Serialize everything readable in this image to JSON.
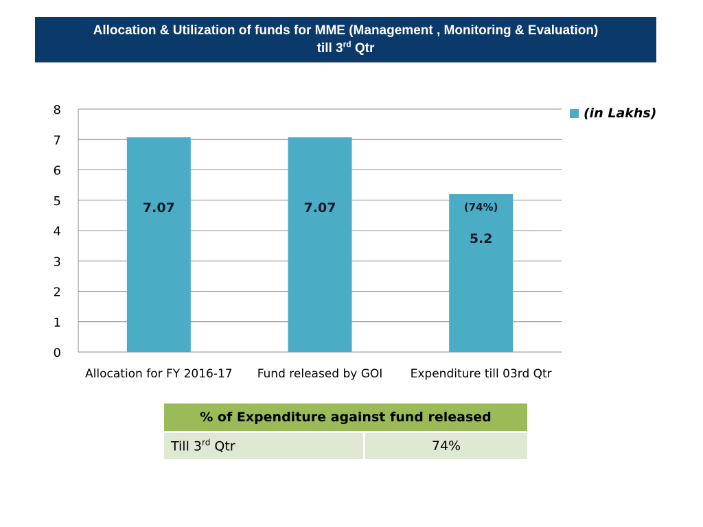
{
  "header": {
    "title_line1": "Allocation & Utilization of funds for MME (Management , Monitoring & Evaluation)",
    "title_line2_prefix": "till 3",
    "title_line2_sup": "rd",
    "title_line2_suffix": " Qtr"
  },
  "chart_data": {
    "type": "bar",
    "categories": [
      "Allocation for FY 2016-17",
      "Fund released by GOI",
      "Expenditure till 03rd  Qtr"
    ],
    "series": [
      {
        "name": "(in Lakhs)",
        "values": [
          7.07,
          7.07,
          5.2
        ],
        "color": "#4bacc6"
      }
    ],
    "data_labels": [
      "7.07",
      "7.07",
      "5.2"
    ],
    "annotations": [
      {
        "category": "Expenditure till 03rd  Qtr",
        "text": "(74%)"
      }
    ],
    "ylim": [
      0,
      8
    ],
    "yticks": [
      0,
      1,
      2,
      3,
      4,
      5,
      6,
      7,
      8
    ],
    "grid": true,
    "legend_position": "top-right"
  },
  "summary_table": {
    "header": "% of Expenditure against fund released",
    "row_label_prefix": "Till 3",
    "row_label_sup": "rd",
    "row_label_suffix": " Qtr",
    "row_value": "74%"
  }
}
